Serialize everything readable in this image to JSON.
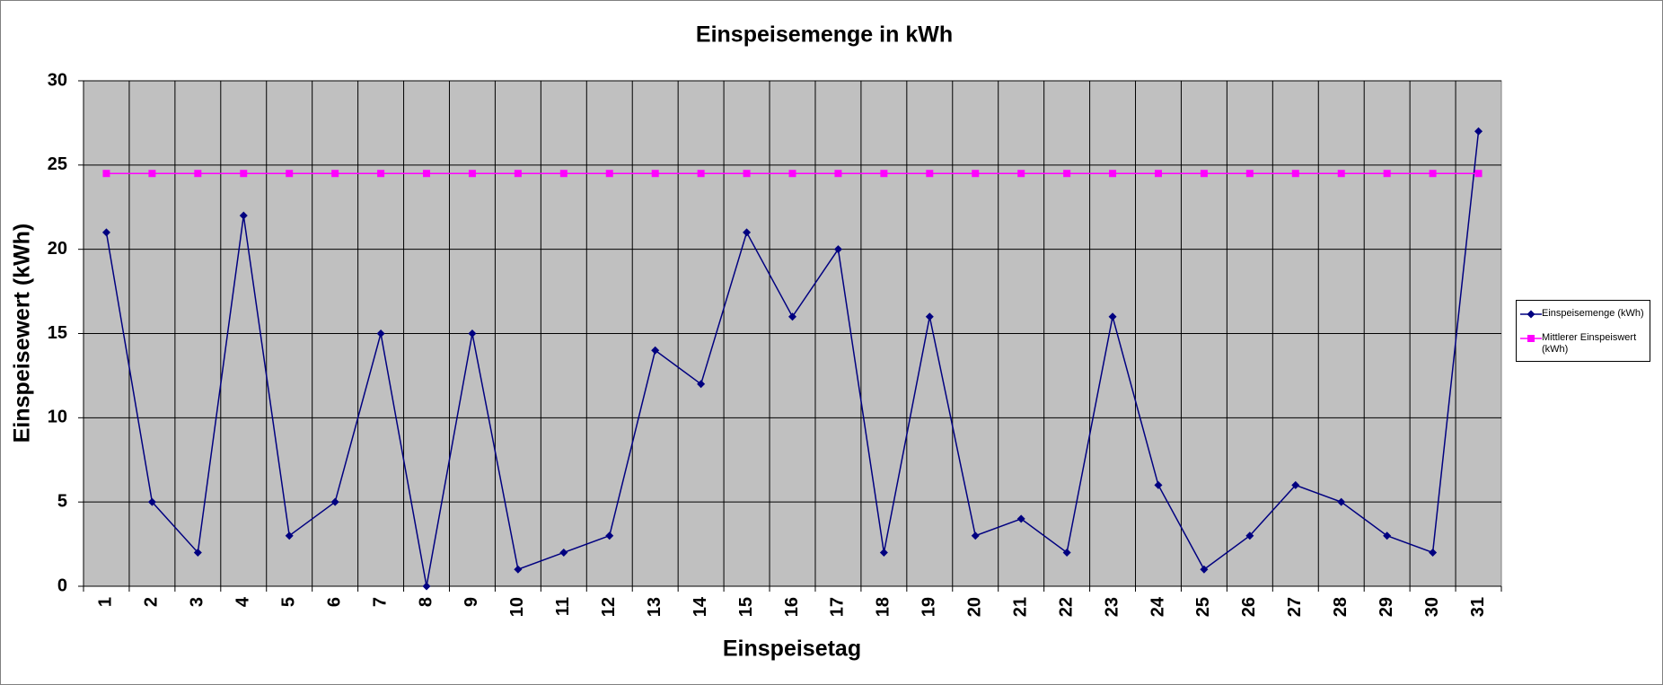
{
  "chart_data": {
    "type": "line",
    "title": "Einspeisemenge in kWh",
    "x_label": "Einspeisetag",
    "y_label": "Einspeisewert  (kWh)",
    "categories": [
      "1",
      "2",
      "3",
      "4",
      "5",
      "6",
      "7",
      "8",
      "9",
      "10",
      "11",
      "12",
      "13",
      "14",
      "15",
      "16",
      "17",
      "18",
      "19",
      "20",
      "21",
      "22",
      "23",
      "24",
      "25",
      "26",
      "27",
      "28",
      "29",
      "30",
      "31"
    ],
    "series": [
      {
        "name": "Einspeisemenge (kWh)",
        "color": "#000080",
        "marker": "diamond",
        "values": [
          21,
          5,
          2,
          22,
          3,
          5,
          15,
          0,
          15,
          1,
          2,
          3,
          14,
          12,
          21,
          16,
          20,
          2,
          16,
          3,
          4,
          2,
          16,
          6,
          1,
          3,
          6,
          5,
          3,
          2,
          27
        ]
      },
      {
        "name": "Mittlerer Einspeiswert (kWh)",
        "color": "#ff00ff",
        "marker": "square",
        "values": [
          24.5,
          24.5,
          24.5,
          24.5,
          24.5,
          24.5,
          24.5,
          24.5,
          24.5,
          24.5,
          24.5,
          24.5,
          24.5,
          24.5,
          24.5,
          24.5,
          24.5,
          24.5,
          24.5,
          24.5,
          24.5,
          24.5,
          24.5,
          24.5,
          24.5,
          24.5,
          24.5,
          24.5,
          24.5,
          24.5,
          24.5
        ]
      }
    ],
    "ylim": [
      0,
      30
    ],
    "yticks": [
      0,
      5,
      10,
      15,
      20,
      25,
      30
    ],
    "grid": true,
    "legend": "right"
  }
}
